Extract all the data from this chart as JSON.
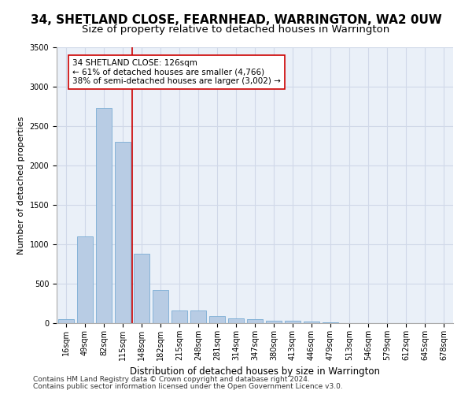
{
  "title": "34, SHETLAND CLOSE, FEARNHEAD, WARRINGTON, WA2 0UW",
  "subtitle": "Size of property relative to detached houses in Warrington",
  "xlabel": "Distribution of detached houses by size in Warrington",
  "ylabel": "Number of detached properties",
  "categories": [
    "16sqm",
    "49sqm",
    "82sqm",
    "115sqm",
    "148sqm",
    "182sqm",
    "215sqm",
    "248sqm",
    "281sqm",
    "314sqm",
    "347sqm",
    "380sqm",
    "413sqm",
    "446sqm",
    "479sqm",
    "513sqm",
    "546sqm",
    "579sqm",
    "612sqm",
    "645sqm",
    "678sqm"
  ],
  "values": [
    50,
    1100,
    2730,
    2300,
    880,
    420,
    165,
    160,
    90,
    60,
    50,
    35,
    30,
    20,
    10,
    5,
    5,
    5,
    3,
    3,
    3
  ],
  "bar_color": "#b8cce4",
  "bar_edge_color": "#7aadd4",
  "grid_color": "#d0d8e8",
  "background_color": "#eaf0f8",
  "vline_color": "#cc0000",
  "annotation_text": "34 SHETLAND CLOSE: 126sqm\n← 61% of detached houses are smaller (4,766)\n38% of semi-detached houses are larger (3,002) →",
  "annotation_box_color": "white",
  "annotation_box_edge_color": "#cc0000",
  "ylim": [
    0,
    3500
  ],
  "yticks": [
    0,
    500,
    1000,
    1500,
    2000,
    2500,
    3000,
    3500
  ],
  "footer_line1": "Contains HM Land Registry data © Crown copyright and database right 2024.",
  "footer_line2": "Contains public sector information licensed under the Open Government Licence v3.0.",
  "title_fontsize": 11,
  "subtitle_fontsize": 9.5,
  "xlabel_fontsize": 8.5,
  "ylabel_fontsize": 8,
  "tick_fontsize": 7,
  "annotation_fontsize": 7.5,
  "footer_fontsize": 6.5
}
